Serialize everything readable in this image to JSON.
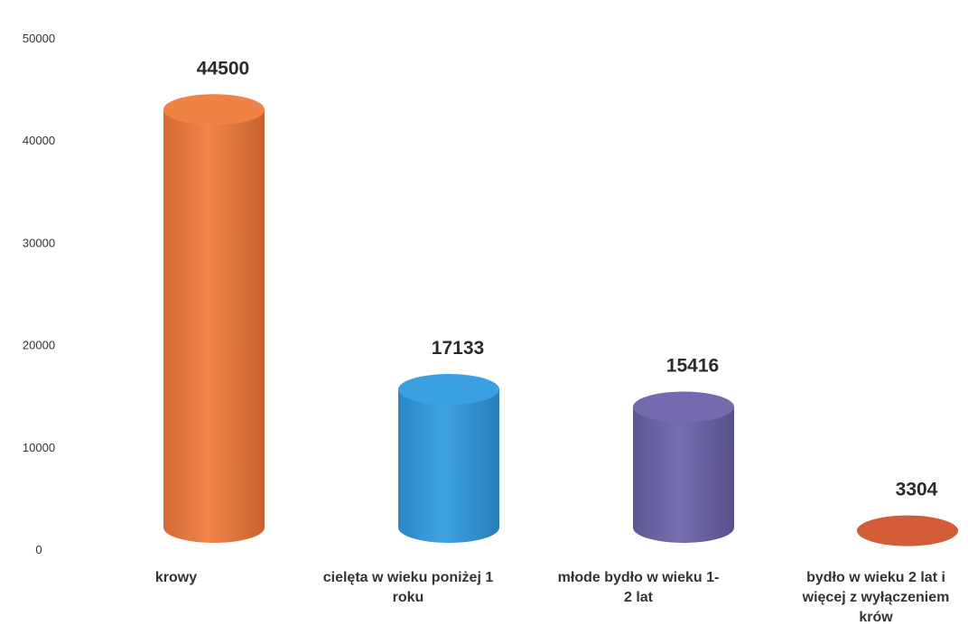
{
  "chart_data": {
    "type": "bar",
    "title": "",
    "xlabel": "",
    "ylabel": "",
    "ylim": [
      0,
      50000
    ],
    "yticks": [
      0,
      10000,
      20000,
      30000,
      40000,
      50000
    ],
    "grid": false,
    "legend": "none",
    "bar_shape": "3d-cylinder",
    "categories": [
      "krowy",
      "cielęta w wieku poniżej 1 roku",
      "młode bydło w wieku 1-2 lat",
      "bydło w wieku 2 lat i więcej z wyłączeniem krów"
    ],
    "category_label_lines": [
      [
        "krowy"
      ],
      [
        "cielęta w wieku poniżej 1",
        "roku"
      ],
      [
        "młode bydło w wieku 1-",
        "2 lat"
      ],
      [
        "bydło w wieku 2 lat i",
        "więcej z wyłączeniem",
        "krów"
      ]
    ],
    "values": [
      44500,
      17133,
      15416,
      3304
    ],
    "data_labels": [
      "44500",
      "17133",
      "15416",
      "3304"
    ],
    "tick_labels": [
      "0",
      "10000",
      "20000",
      "30000",
      "40000",
      "50000"
    ],
    "colors": [
      "#f07a3a",
      "#2f9ae0",
      "#6a62a8",
      "#d0502a"
    ]
  }
}
